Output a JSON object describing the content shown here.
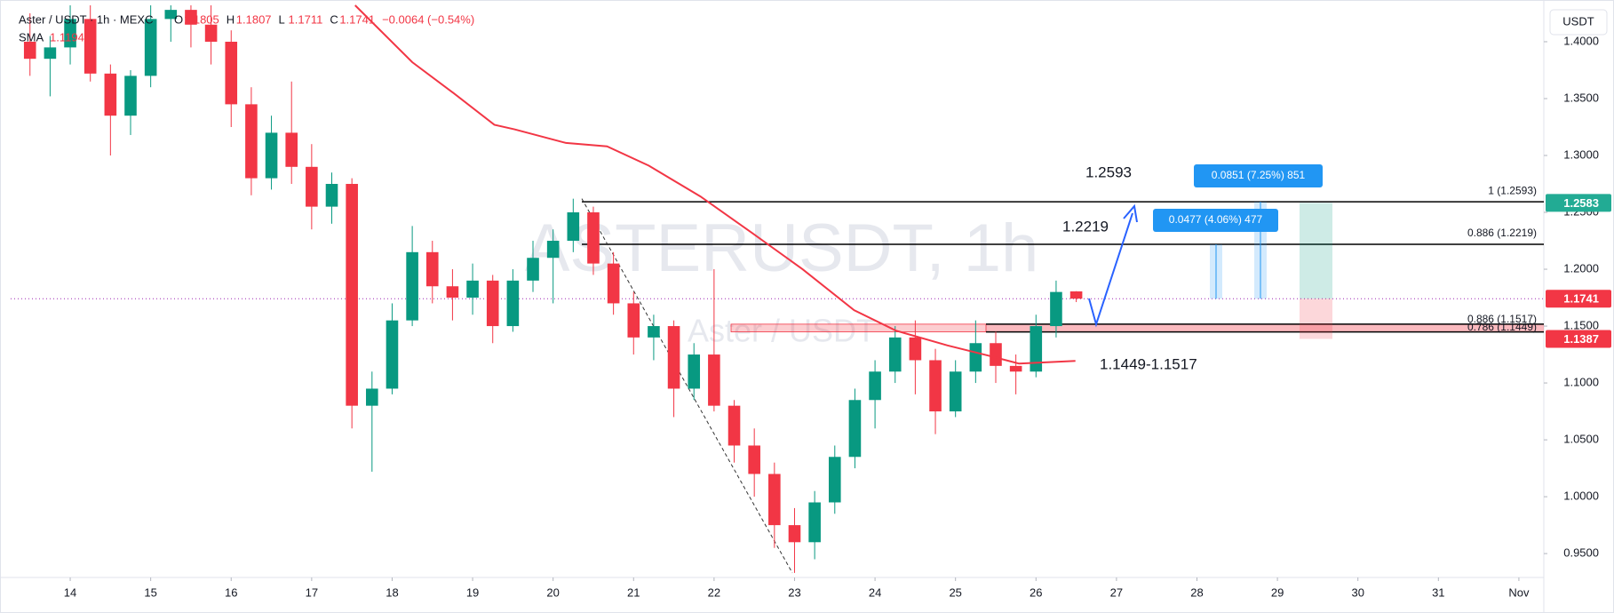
{
  "header": {
    "symbol": "Aster / USDT · 1h · MEXC",
    "ohlc": [
      {
        "name": "O",
        "value": 1.1805
      },
      {
        "name": "H",
        "value": 1.1807
      },
      {
        "name": "L",
        "value": 1.1711
      },
      {
        "name": "C",
        "value": 1.1741
      }
    ],
    "change": "−0.0064 (−0.54%)",
    "sma_name": "SMA",
    "sma_value": 1.1194
  },
  "currency": "USDT",
  "watermark": {
    "title": "ASTERUSDT, 1h",
    "subtitle": "Aster / USDT"
  },
  "chart_data": {
    "type": "candlestick",
    "x": [
      13.5,
      13.75,
      14,
      14.25,
      14.5,
      14.75,
      15,
      15.25,
      15.5,
      15.75,
      16,
      16.25,
      16.5,
      16.75,
      17,
      17.25,
      17.5,
      17.75,
      18,
      18.25,
      18.5,
      18.75,
      19,
      19.25,
      19.5,
      19.75,
      20,
      20.25,
      20.5,
      20.75,
      21,
      21.25,
      21.5,
      21.75,
      22,
      22.25,
      22.5,
      22.75,
      23,
      23.25,
      23.5,
      23.75,
      24,
      24.25,
      24.5,
      24.75,
      25,
      25.25,
      25.5,
      25.75,
      26,
      26.25,
      26.5
    ],
    "open": [
      1.4,
      1.385,
      1.395,
      1.42,
      1.372,
      1.335,
      1.37,
      1.42,
      1.428,
      1.415,
      1.4,
      1.345,
      1.28,
      1.32,
      1.29,
      1.255,
      1.275,
      1.08,
      1.095,
      1.155,
      1.215,
      1.185,
      1.175,
      1.19,
      1.15,
      1.19,
      1.21,
      1.225,
      1.25,
      1.205,
      1.17,
      1.14,
      1.15,
      1.095,
      1.125,
      1.08,
      1.045,
      1.02,
      0.975,
      0.96,
      0.995,
      1.035,
      1.085,
      1.11,
      1.14,
      1.12,
      1.075,
      1.11,
      1.135,
      1.115,
      1.11,
      1.15,
      1.1805
    ],
    "high": [
      1.425,
      1.405,
      1.432,
      1.432,
      1.38,
      1.375,
      1.432,
      1.432,
      1.432,
      1.432,
      1.41,
      1.36,
      1.335,
      1.365,
      1.31,
      1.285,
      1.28,
      1.11,
      1.17,
      1.238,
      1.225,
      1.2,
      1.205,
      1.195,
      1.2,
      1.225,
      1.235,
      1.262,
      1.255,
      1.215,
      1.18,
      1.16,
      1.155,
      1.135,
      1.2,
      1.085,
      1.06,
      1.03,
      0.99,
      1.005,
      1.045,
      1.095,
      1.12,
      1.15,
      1.155,
      1.13,
      1.12,
      1.155,
      1.145,
      1.125,
      1.16,
      1.19,
      1.1807
    ],
    "low": [
      1.37,
      1.352,
      1.38,
      1.365,
      1.3,
      1.318,
      1.36,
      1.4,
      1.395,
      1.38,
      1.325,
      1.265,
      1.27,
      1.275,
      1.235,
      1.24,
      1.06,
      1.022,
      1.09,
      1.15,
      1.17,
      1.155,
      1.16,
      1.135,
      1.145,
      1.18,
      1.17,
      1.215,
      1.195,
      1.16,
      1.125,
      1.12,
      1.07,
      1.085,
      1.075,
      1.03,
      1.0,
      0.955,
      0.933,
      0.945,
      0.985,
      1.025,
      1.06,
      1.1,
      1.09,
      1.055,
      1.07,
      1.1,
      1.1,
      1.09,
      1.105,
      1.14,
      1.1711
    ],
    "close": [
      1.385,
      1.395,
      1.42,
      1.372,
      1.335,
      1.37,
      1.42,
      1.428,
      1.415,
      1.4,
      1.345,
      1.28,
      1.32,
      1.29,
      1.255,
      1.275,
      1.08,
      1.095,
      1.155,
      1.215,
      1.185,
      1.175,
      1.19,
      1.15,
      1.19,
      1.21,
      1.225,
      1.25,
      1.205,
      1.17,
      1.14,
      1.15,
      1.095,
      1.125,
      1.08,
      1.045,
      1.02,
      0.975,
      0.96,
      0.995,
      1.035,
      1.085,
      1.11,
      1.14,
      1.12,
      1.075,
      1.11,
      1.135,
      1.115,
      1.11,
      1.15,
      1.18,
      1.1741
    ],
    "up_color": "#089981",
    "down_color": "#f23645",
    "sma": {
      "name": "SMA",
      "color": "#f23645",
      "x": [
        17.54,
        18.25,
        18.76,
        19.27,
        19.52,
        20.16,
        20.67,
        21.19,
        21.83,
        22.47,
        23.1,
        23.74,
        24.26,
        24.9,
        25.41,
        25.79,
        26.49
      ],
      "values": [
        1.432,
        1.382,
        1.355,
        1.327,
        1.323,
        1.311,
        1.308,
        1.291,
        1.264,
        1.232,
        1.2,
        1.164,
        1.146,
        1.133,
        1.124,
        1.117,
        1.1194
      ]
    },
    "xlim": [
      13.26,
      32.31
    ],
    "xticks": [
      14,
      15,
      16,
      17,
      18,
      19,
      20,
      21,
      22,
      23,
      24,
      25,
      26,
      27,
      28,
      29,
      30,
      31,
      {
        "value": 32,
        "label": "Nov"
      }
    ],
    "ylim": [
      0.929,
      1.432
    ],
    "yticks": [
      {
        "value": 0.95,
        "label": "0.9500"
      },
      {
        "value": 1.0,
        "label": "1.0000"
      },
      {
        "value": 1.05,
        "label": "1.0500"
      },
      {
        "value": 1.1,
        "label": "1.1000"
      },
      {
        "value": 1.15,
        "label": "1.1500"
      },
      {
        "value": 1.2,
        "label": "1.2000"
      },
      {
        "value": 1.25,
        "label": "1.2500"
      },
      {
        "value": 1.3,
        "label": "1.3000"
      },
      {
        "value": 1.35,
        "label": "1.3500"
      },
      {
        "value": 1.4,
        "label": "1.4000"
      }
    ],
    "grid": false,
    "levels": [
      {
        "value": 1.2593,
        "label": "1 (1.2593)"
      },
      {
        "value": 1.2219,
        "label": "0.886 (1.2219)"
      }
    ],
    "zone": {
      "high": 1.1517,
      "low": 1.1449,
      "label": "1.1449-1.1517",
      "level_labels": [
        "0.886 (1.1517)",
        "0.786 (1.1449)"
      ]
    },
    "targets": [
      {
        "value": 1.2593,
        "label": "1.2593"
      },
      {
        "value": 1.2219,
        "label": "1.2219"
      }
    ],
    "measures": [
      "0.0477 (4.06%) 477",
      "0.0851 (7.25%) 851"
    ],
    "price_labels": [
      {
        "value": 1.2583,
        "label": "1.2583",
        "color": "#22ab94"
      },
      {
        "value": 1.1741,
        "label": "1.1741",
        "color": "#f23645"
      },
      {
        "value": 1.1387,
        "label": "1.1387",
        "color": "#f23645"
      }
    ]
  }
}
